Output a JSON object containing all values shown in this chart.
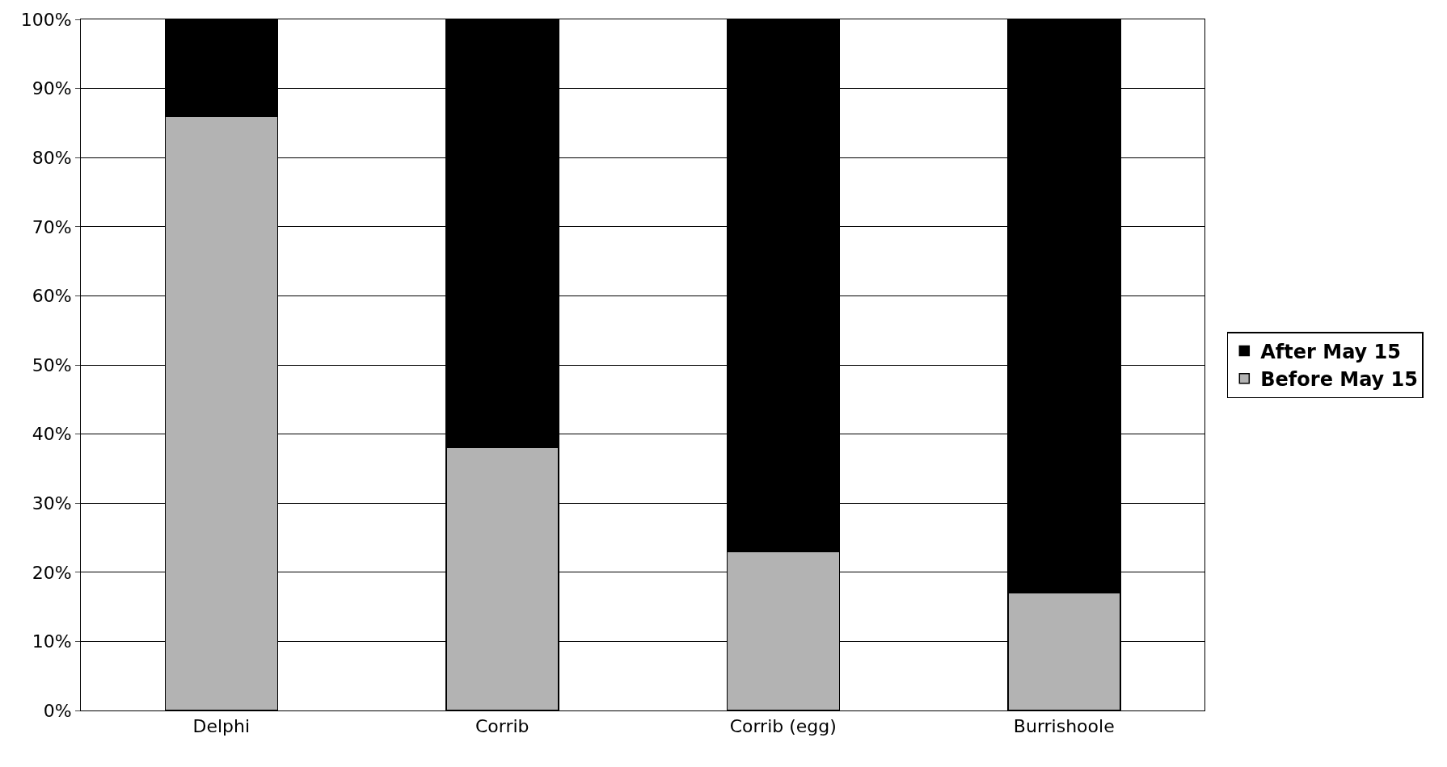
{
  "chart_data": {
    "type": "bar",
    "stacked": true,
    "categories": [
      "Delphi",
      "Corrib",
      "Corrib (egg)",
      "Burrishoole"
    ],
    "series": [
      {
        "name": "Before May 15",
        "color": "#b3b3b3",
        "values": [
          86,
          38,
          23,
          17
        ]
      },
      {
        "name": "After May 15",
        "color": "#000000",
        "values": [
          14,
          62,
          77,
          83
        ]
      }
    ],
    "ylim": [
      0,
      100
    ],
    "yticks": [
      {
        "value": 0,
        "label": "0%"
      },
      {
        "value": 10,
        "label": "10%"
      },
      {
        "value": 20,
        "label": "20%"
      },
      {
        "value": 30,
        "label": "30%"
      },
      {
        "value": 40,
        "label": "40%"
      },
      {
        "value": 50,
        "label": "50%"
      },
      {
        "value": 60,
        "label": "60%"
      },
      {
        "value": 70,
        "label": "70%"
      },
      {
        "value": 80,
        "label": "80%"
      },
      {
        "value": 90,
        "label": "90%"
      },
      {
        "value": 100,
        "label": "100%"
      }
    ],
    "grid": "y",
    "legend": "right"
  }
}
